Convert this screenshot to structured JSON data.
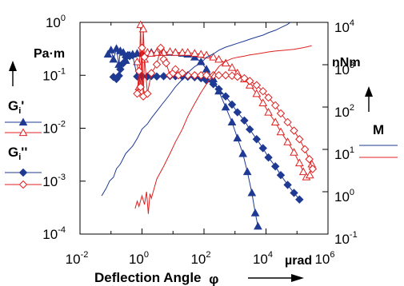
{
  "chart_data": {
    "type": "line",
    "x_axis": {
      "label": "Deflection Angle",
      "symbol": "φ",
      "unit": "µrad",
      "scale": "log",
      "range": [
        0.01,
        1000000
      ],
      "ticks": [
        {
          "base": "10",
          "exp": "-2"
        },
        {
          "base": "10",
          "exp": "0"
        },
        {
          "base": "10",
          "exp": "2"
        },
        {
          "base": "10",
          "exp": "4"
        },
        {
          "base": "10",
          "exp": "6"
        }
      ]
    },
    "y_left": {
      "unit": "Pa·m",
      "scale": "log",
      "range": [
        0.0001,
        1
      ],
      "ticks": [
        {
          "base": "10",
          "exp": "0"
        },
        {
          "base": "10",
          "exp": "-1"
        },
        {
          "base": "10",
          "exp": "-2"
        },
        {
          "base": "10",
          "exp": "-3"
        },
        {
          "base": "10",
          "exp": "-4"
        }
      ]
    },
    "y_right": {
      "unit": "nNm",
      "scale": "log",
      "range": [
        0.1,
        10000
      ],
      "ticks": [
        {
          "base": "10",
          "exp": "4"
        },
        {
          "base": "10",
          "exp": "3"
        },
        {
          "base": "10",
          "exp": "2"
        },
        {
          "base": "10",
          "exp": "1"
        },
        {
          "base": "10",
          "exp": "0"
        },
        {
          "base": "10",
          "exp": "-1"
        }
      ]
    },
    "legend": {
      "gi_prime": {
        "label": "G",
        "sub": "i",
        "mark": "'"
      },
      "gi_double": {
        "label": "G",
        "sub": "i",
        "mark": "''"
      },
      "m": {
        "label": "M"
      }
    },
    "series": [
      {
        "key": "Gp_blue",
        "axis": "left",
        "color": "#1f3a93",
        "marker": "triangle-filled",
        "points": [
          [
            0.08,
            0.25
          ],
          [
            0.1,
            0.3
          ],
          [
            0.12,
            0.2
          ],
          [
            0.15,
            0.32
          ],
          [
            0.18,
            0.16
          ],
          [
            0.2,
            0.29
          ],
          [
            0.25,
            0.27
          ],
          [
            0.3,
            0.19
          ],
          [
            0.4,
            0.24
          ],
          [
            0.5,
            0.25
          ],
          [
            0.7,
            0.26
          ],
          [
            1,
            0.26
          ],
          [
            1.5,
            0.26
          ],
          [
            2,
            0.27
          ],
          [
            3,
            0.27
          ],
          [
            5,
            0.27
          ],
          [
            8,
            0.27
          ],
          [
            12,
            0.27
          ],
          [
            20,
            0.26
          ],
          [
            30,
            0.25
          ],
          [
            50,
            0.22
          ],
          [
            80,
            0.18
          ],
          [
            120,
            0.13
          ],
          [
            200,
            0.085
          ],
          [
            300,
            0.05
          ],
          [
            500,
            0.025
          ],
          [
            800,
            0.013
          ],
          [
            1200,
            0.0065
          ],
          [
            1800,
            0.0033
          ],
          [
            2500,
            0.0015
          ],
          [
            3500,
            0.0006
          ],
          [
            4500,
            0.00025
          ],
          [
            5500,
            0.00014
          ]
        ]
      },
      {
        "key": "Gp_red",
        "axis": "left",
        "color": "#e02020",
        "marker": "triangle-open",
        "points": [
          [
            0.7,
            0.18
          ],
          [
            0.8,
            0.06
          ],
          [
            0.9,
            0.9
          ],
          [
            1.0,
            0.05
          ],
          [
            1.1,
            0.75
          ],
          [
            1.2,
            0.2
          ],
          [
            1.5,
            0.27
          ],
          [
            2,
            0.26
          ],
          [
            3,
            0.27
          ],
          [
            5,
            0.27
          ],
          [
            8,
            0.28
          ],
          [
            12,
            0.27
          ],
          [
            20,
            0.27
          ],
          [
            30,
            0.27
          ],
          [
            50,
            0.26
          ],
          [
            80,
            0.25
          ],
          [
            120,
            0.24
          ],
          [
            200,
            0.22
          ],
          [
            300,
            0.2
          ],
          [
            500,
            0.17
          ],
          [
            800,
            0.14
          ],
          [
            1200,
            0.11
          ],
          [
            2000,
            0.085
          ],
          [
            3000,
            0.065
          ],
          [
            5000,
            0.045
          ],
          [
            8000,
            0.03
          ],
          [
            12000,
            0.02
          ],
          [
            20000,
            0.013
          ],
          [
            30000,
            0.0085
          ],
          [
            50000,
            0.0055
          ],
          [
            80000,
            0.0035
          ],
          [
            120000,
            0.0022
          ],
          [
            160000,
            0.0015
          ],
          [
            200000,
            0.0012
          ],
          [
            260000,
            0.0013
          ],
          [
            300000,
            0.0021
          ]
        ]
      },
      {
        "key": "Gpp_blue",
        "axis": "left",
        "color": "#1f3a93",
        "marker": "diamond-filled",
        "points": [
          [
            0.12,
            0.093
          ],
          [
            0.15,
            0.085
          ],
          [
            0.18,
            0.098
          ],
          [
            0.2,
            0.13
          ],
          [
            0.25,
            0.17
          ],
          [
            0.3,
            0.22
          ],
          [
            0.35,
            0.24
          ],
          [
            0.4,
            0.23
          ],
          [
            0.5,
            0.24
          ],
          [
            0.7,
            0.095
          ],
          [
            1,
            0.096
          ],
          [
            1.5,
            0.095
          ],
          [
            2,
            0.097
          ],
          [
            3,
            0.095
          ],
          [
            5,
            0.096
          ],
          [
            8,
            0.097
          ],
          [
            12,
            0.096
          ],
          [
            20,
            0.095
          ],
          [
            30,
            0.094
          ],
          [
            50,
            0.092
          ],
          [
            80,
            0.088
          ],
          [
            120,
            0.08
          ],
          [
            200,
            0.068
          ],
          [
            300,
            0.055
          ],
          [
            500,
            0.04
          ],
          [
            800,
            0.028
          ],
          [
            1200,
            0.02
          ],
          [
            2000,
            0.014
          ],
          [
            3000,
            0.0095
          ],
          [
            5000,
            0.0062
          ],
          [
            8000,
            0.0042
          ],
          [
            12000,
            0.0028
          ],
          [
            20000,
            0.0019
          ],
          [
            30000,
            0.0013
          ],
          [
            50000,
            0.00085
          ],
          [
            80000,
            0.0006
          ],
          [
            120000,
            0.00045
          ]
        ]
      },
      {
        "key": "Gpp_red",
        "axis": "left",
        "color": "#e02020",
        "marker": "diamond-open",
        "points": [
          [
            0.7,
            0.045
          ],
          [
            0.8,
            0.12
          ],
          [
            0.9,
            0.06
          ],
          [
            1.0,
            0.33
          ],
          [
            1.1,
            0.04
          ],
          [
            1.2,
            0.22
          ],
          [
            1.5,
            0.045
          ],
          [
            2,
            0.11
          ],
          [
            3,
            0.16
          ],
          [
            4,
            0.33
          ],
          [
            5,
            0.2
          ],
          [
            6,
            0.17
          ],
          [
            8,
            0.1
          ],
          [
            10,
            0.11
          ],
          [
            12,
            0.13
          ],
          [
            15,
            0.1
          ],
          [
            20,
            0.11
          ],
          [
            30,
            0.1
          ],
          [
            50,
            0.1
          ],
          [
            80,
            0.1
          ],
          [
            120,
            0.1
          ],
          [
            200,
            0.1
          ],
          [
            300,
            0.1
          ],
          [
            500,
            0.1
          ],
          [
            800,
            0.098
          ],
          [
            1200,
            0.094
          ],
          [
            2000,
            0.088
          ],
          [
            3000,
            0.078
          ],
          [
            5000,
            0.065
          ],
          [
            8000,
            0.05
          ],
          [
            12000,
            0.038
          ],
          [
            20000,
            0.027
          ],
          [
            30000,
            0.019
          ],
          [
            50000,
            0.013
          ],
          [
            80000,
            0.009
          ],
          [
            120000,
            0.0062
          ],
          [
            180000,
            0.004
          ],
          [
            250000,
            0.0026
          ],
          [
            320000,
            0.0017
          ]
        ]
      },
      {
        "key": "M_blue",
        "axis": "right",
        "color": "#1f3a93",
        "marker": "none",
        "points": [
          [
            0.05,
            0.8
          ],
          [
            0.07,
            1.2
          ],
          [
            0.09,
            1.8
          ],
          [
            0.12,
            2.2
          ],
          [
            0.15,
            3.5
          ],
          [
            0.2,
            4.5
          ],
          [
            0.3,
            8
          ],
          [
            0.5,
            12
          ],
          [
            0.7,
            18
          ],
          [
            1,
            30
          ],
          [
            1.5,
            40
          ],
          [
            2,
            55
          ],
          [
            3,
            80
          ],
          [
            5,
            130
          ],
          [
            8,
            200
          ],
          [
            12,
            300
          ],
          [
            20,
            450
          ],
          [
            30,
            650
          ],
          [
            50,
            900
          ],
          [
            80,
            1100
          ],
          [
            120,
            1500
          ],
          [
            200,
            1800
          ],
          [
            300,
            2200
          ],
          [
            500,
            2600
          ],
          [
            800,
            2900
          ],
          [
            1200,
            3200
          ],
          [
            2000,
            3600
          ],
          [
            3000,
            4000
          ],
          [
            5000,
            4500
          ],
          [
            8000,
            5000
          ],
          [
            12000,
            5700
          ],
          [
            20000,
            6500
          ],
          [
            30000,
            7500
          ],
          [
            50000,
            9000
          ],
          [
            60000,
            10000
          ]
        ]
      },
      {
        "key": "M_red",
        "axis": "right",
        "color": "#e02020",
        "marker": "none",
        "points": [
          [
            0.6,
            0.4
          ],
          [
            0.7,
            0.6
          ],
          [
            0.8,
            0.45
          ],
          [
            1,
            0.8
          ],
          [
            1.2,
            0.5
          ],
          [
            1.4,
            1.0
          ],
          [
            1.6,
            0.3
          ],
          [
            1.8,
            0.9
          ],
          [
            2,
            0.7
          ],
          [
            3,
            2.0
          ],
          [
            5,
            4
          ],
          [
            8,
            8
          ],
          [
            12,
            15
          ],
          [
            20,
            30
          ],
          [
            30,
            60
          ],
          [
            50,
            120
          ],
          [
            80,
            220
          ],
          [
            120,
            350
          ],
          [
            200,
            600
          ],
          [
            300,
            900
          ],
          [
            500,
            1200
          ],
          [
            800,
            1400
          ],
          [
            1200,
            1500
          ],
          [
            2000,
            1600
          ],
          [
            3000,
            1700
          ],
          [
            5000,
            1800
          ],
          [
            8000,
            1900
          ],
          [
            12000,
            2000
          ],
          [
            20000,
            2100
          ],
          [
            40000,
            2200
          ],
          [
            80000,
            2300
          ],
          [
            150000,
            2500
          ],
          [
            300000,
            2800
          ]
        ]
      }
    ]
  }
}
